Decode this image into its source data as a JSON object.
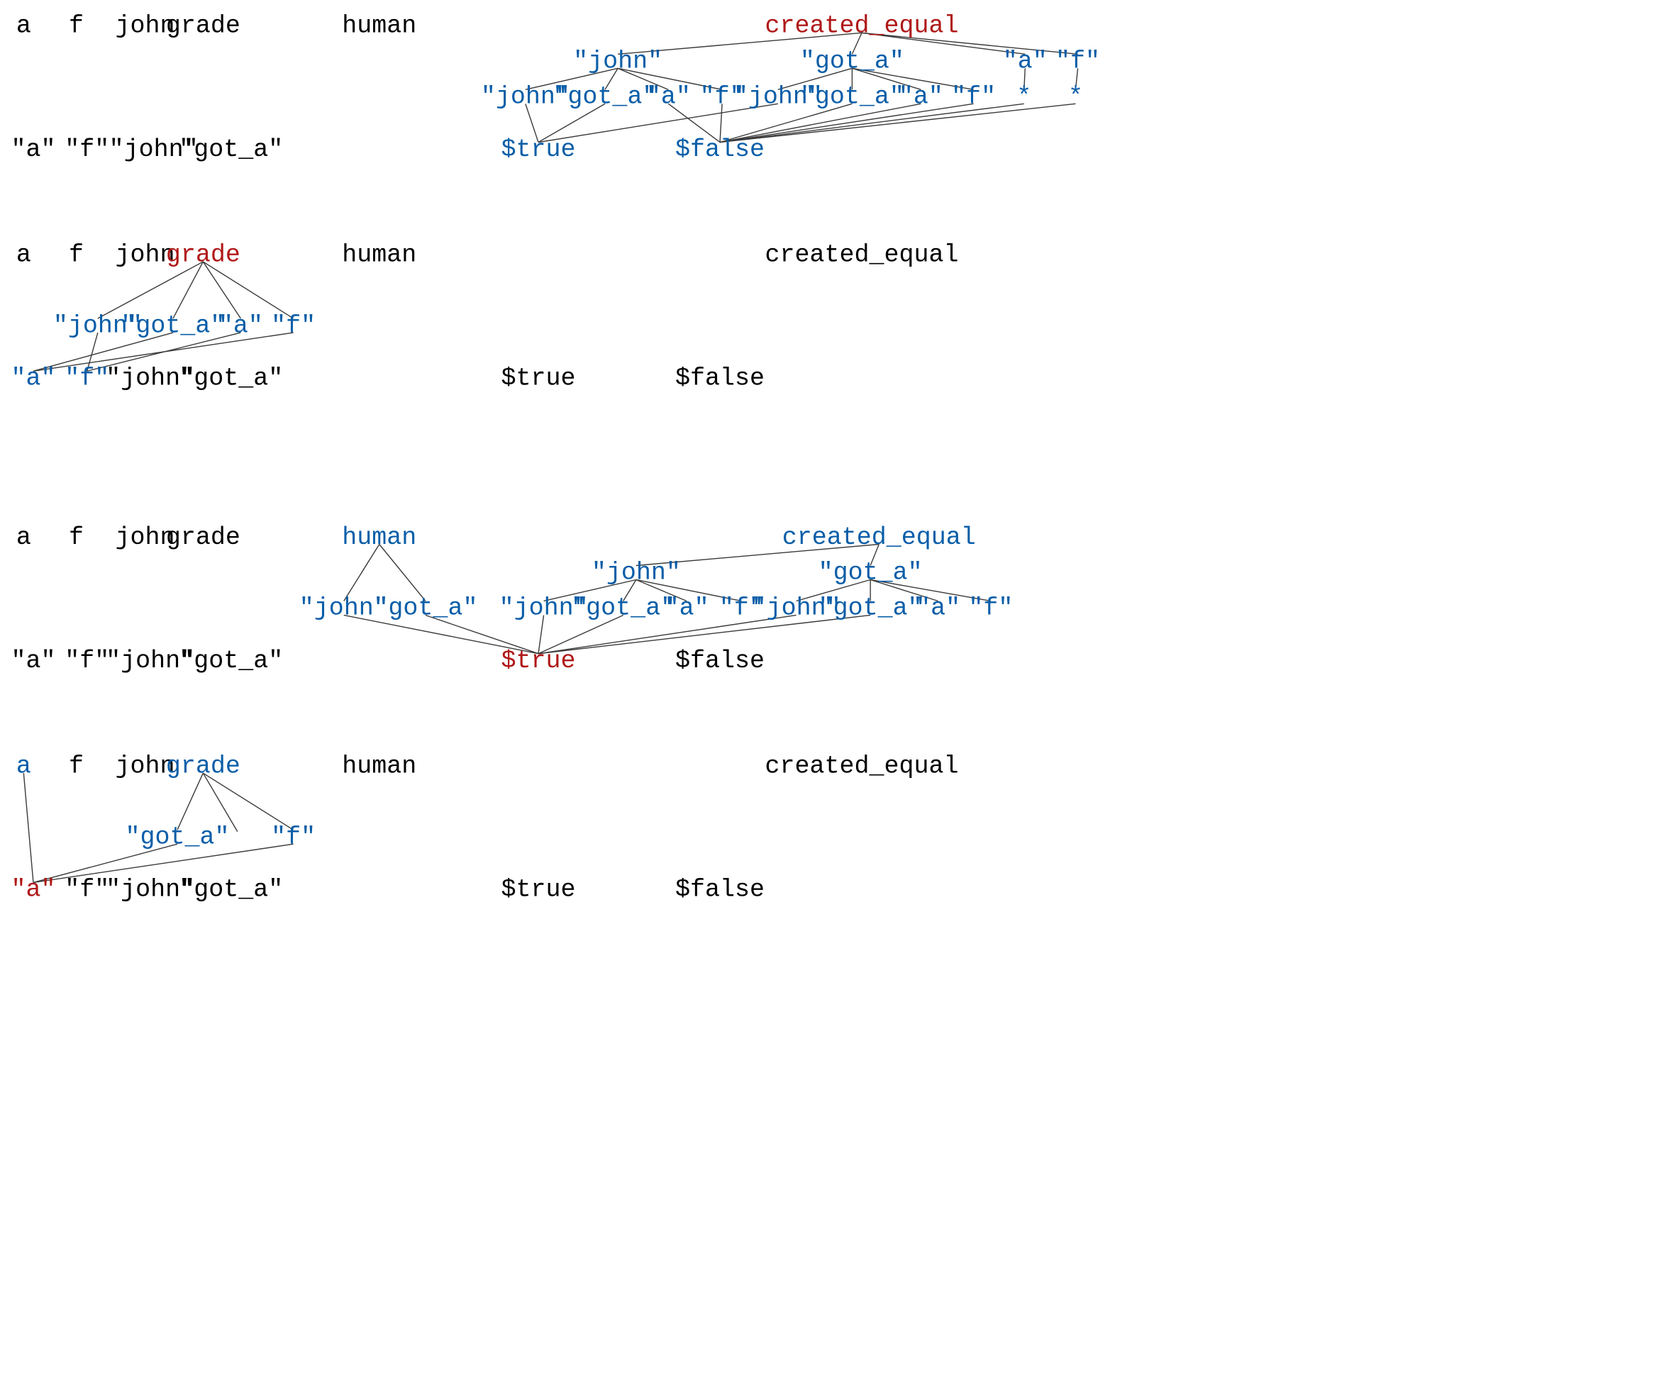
{
  "colors": {
    "plain": "#000000",
    "active": "#0a5ea8",
    "focus": "#b01818"
  },
  "panels": [
    {
      "nodes": [
        {
          "id": "a",
          "text": "a",
          "state": "plain"
        },
        {
          "id": "f",
          "text": "f",
          "state": "plain"
        },
        {
          "id": "john",
          "text": "john",
          "state": "plain"
        },
        {
          "id": "grade",
          "text": "grade",
          "state": "plain"
        },
        {
          "id": "human",
          "text": "human",
          "state": "plain"
        },
        {
          "id": "ce",
          "text": "created_equal",
          "state": "focus"
        },
        {
          "id": "c1",
          "text": "\"john\"",
          "state": "active"
        },
        {
          "id": "c2",
          "text": "\"got_a\"",
          "state": "active"
        },
        {
          "id": "c3",
          "text": "\"a\"",
          "state": "active"
        },
        {
          "id": "c4",
          "text": "\"f\"",
          "state": "active"
        },
        {
          "id": "d1",
          "text": "\"john\"",
          "state": "active"
        },
        {
          "id": "d2",
          "text": "\"got_a\"",
          "state": "active"
        },
        {
          "id": "d3",
          "text": "\"a\"",
          "state": "active"
        },
        {
          "id": "d4",
          "text": "\"f\"",
          "state": "active"
        },
        {
          "id": "d5",
          "text": "\"john\"",
          "state": "active"
        },
        {
          "id": "d6",
          "text": "\"got_a\"",
          "state": "active"
        },
        {
          "id": "d7",
          "text": "\"a\"",
          "state": "active"
        },
        {
          "id": "d8",
          "text": "\"f\"",
          "state": "active"
        },
        {
          "id": "d9",
          "text": "*",
          "state": "active"
        },
        {
          "id": "d10",
          "text": "*",
          "state": "active"
        },
        {
          "id": "qa",
          "text": "\"a\"",
          "state": "plain"
        },
        {
          "id": "qf",
          "text": "\"f\"",
          "state": "plain"
        },
        {
          "id": "qjohn",
          "text": "\"john\"",
          "state": "plain"
        },
        {
          "id": "qgot",
          "text": "\"got_a\"",
          "state": "plain"
        },
        {
          "id": "true",
          "text": "$true",
          "state": "active"
        },
        {
          "id": "false",
          "text": "$false",
          "state": "active"
        }
      ]
    },
    {
      "nodes": [
        {
          "id": "a",
          "text": "a",
          "state": "plain"
        },
        {
          "id": "f",
          "text": "f",
          "state": "plain"
        },
        {
          "id": "john",
          "text": "john",
          "state": "plain"
        },
        {
          "id": "grade",
          "text": "grade",
          "state": "focus"
        },
        {
          "id": "human",
          "text": "human",
          "state": "plain"
        },
        {
          "id": "ce",
          "text": "created_equal",
          "state": "plain"
        },
        {
          "id": "g1",
          "text": "\"john\"",
          "state": "active"
        },
        {
          "id": "g2",
          "text": "\"got_a\"",
          "state": "active"
        },
        {
          "id": "g3",
          "text": "\"a\"",
          "state": "active"
        },
        {
          "id": "g4",
          "text": "\"f\"",
          "state": "active"
        },
        {
          "id": "qa",
          "text": "\"a\"",
          "state": "active"
        },
        {
          "id": "qf",
          "text": "\"f\"",
          "state": "active"
        },
        {
          "id": "qjohn",
          "text": "\"john\"",
          "state": "plain"
        },
        {
          "id": "qgot",
          "text": "\"got_a\"",
          "state": "plain"
        },
        {
          "id": "true",
          "text": "$true",
          "state": "plain"
        },
        {
          "id": "false",
          "text": "$false",
          "state": "plain"
        }
      ]
    },
    {
      "nodes": [
        {
          "id": "a",
          "text": "a",
          "state": "plain"
        },
        {
          "id": "f",
          "text": "f",
          "state": "plain"
        },
        {
          "id": "john",
          "text": "john",
          "state": "plain"
        },
        {
          "id": "grade",
          "text": "grade",
          "state": "plain"
        },
        {
          "id": "human",
          "text": "human",
          "state": "active"
        },
        {
          "id": "ce",
          "text": "created_equal",
          "state": "active"
        },
        {
          "id": "h1",
          "text": "\"john\"",
          "state": "active"
        },
        {
          "id": "h2",
          "text": "\"got_a\"",
          "state": "active"
        },
        {
          "id": "c1",
          "text": "\"john\"",
          "state": "active"
        },
        {
          "id": "c2",
          "text": "\"got_a\"",
          "state": "active"
        },
        {
          "id": "d1",
          "text": "\"john\"",
          "state": "active"
        },
        {
          "id": "d2",
          "text": "\"got_a\"",
          "state": "active"
        },
        {
          "id": "d3",
          "text": "\"a\"",
          "state": "active"
        },
        {
          "id": "d4",
          "text": "\"f\"",
          "state": "active"
        },
        {
          "id": "d5",
          "text": "\"john\"",
          "state": "active"
        },
        {
          "id": "d6",
          "text": "\"got_a\"",
          "state": "active"
        },
        {
          "id": "d7",
          "text": "\"a\"",
          "state": "active"
        },
        {
          "id": "d8",
          "text": "\"f\"",
          "state": "active"
        },
        {
          "id": "qa",
          "text": "\"a\"",
          "state": "plain"
        },
        {
          "id": "qf",
          "text": "\"f\"",
          "state": "plain"
        },
        {
          "id": "qjohn",
          "text": "\"john\"",
          "state": "plain"
        },
        {
          "id": "qgot",
          "text": "\"got_a\"",
          "state": "plain"
        },
        {
          "id": "true",
          "text": "$true",
          "state": "focus"
        },
        {
          "id": "false",
          "text": "$false",
          "state": "plain"
        }
      ]
    },
    {
      "nodes": [
        {
          "id": "a",
          "text": "a",
          "state": "active"
        },
        {
          "id": "f",
          "text": "f",
          "state": "plain"
        },
        {
          "id": "john",
          "text": "john",
          "state": "plain"
        },
        {
          "id": "grade",
          "text": "grade",
          "state": "active"
        },
        {
          "id": "human",
          "text": "human",
          "state": "plain"
        },
        {
          "id": "ce",
          "text": "created_equal",
          "state": "plain"
        },
        {
          "id": "g2",
          "text": "\"got_a\"",
          "state": "active"
        },
        {
          "id": "g4",
          "text": "\"f\"",
          "state": "active"
        },
        {
          "id": "qa",
          "text": "\"a\"",
          "state": "focus"
        },
        {
          "id": "qf",
          "text": "\"f\"",
          "state": "plain"
        },
        {
          "id": "qjohn",
          "text": "\"john\"",
          "state": "plain"
        },
        {
          "id": "qgot",
          "text": "\"got_a\"",
          "state": "plain"
        },
        {
          "id": "true",
          "text": "$true",
          "state": "plain"
        },
        {
          "id": "false",
          "text": "$false",
          "state": "plain"
        }
      ]
    }
  ]
}
